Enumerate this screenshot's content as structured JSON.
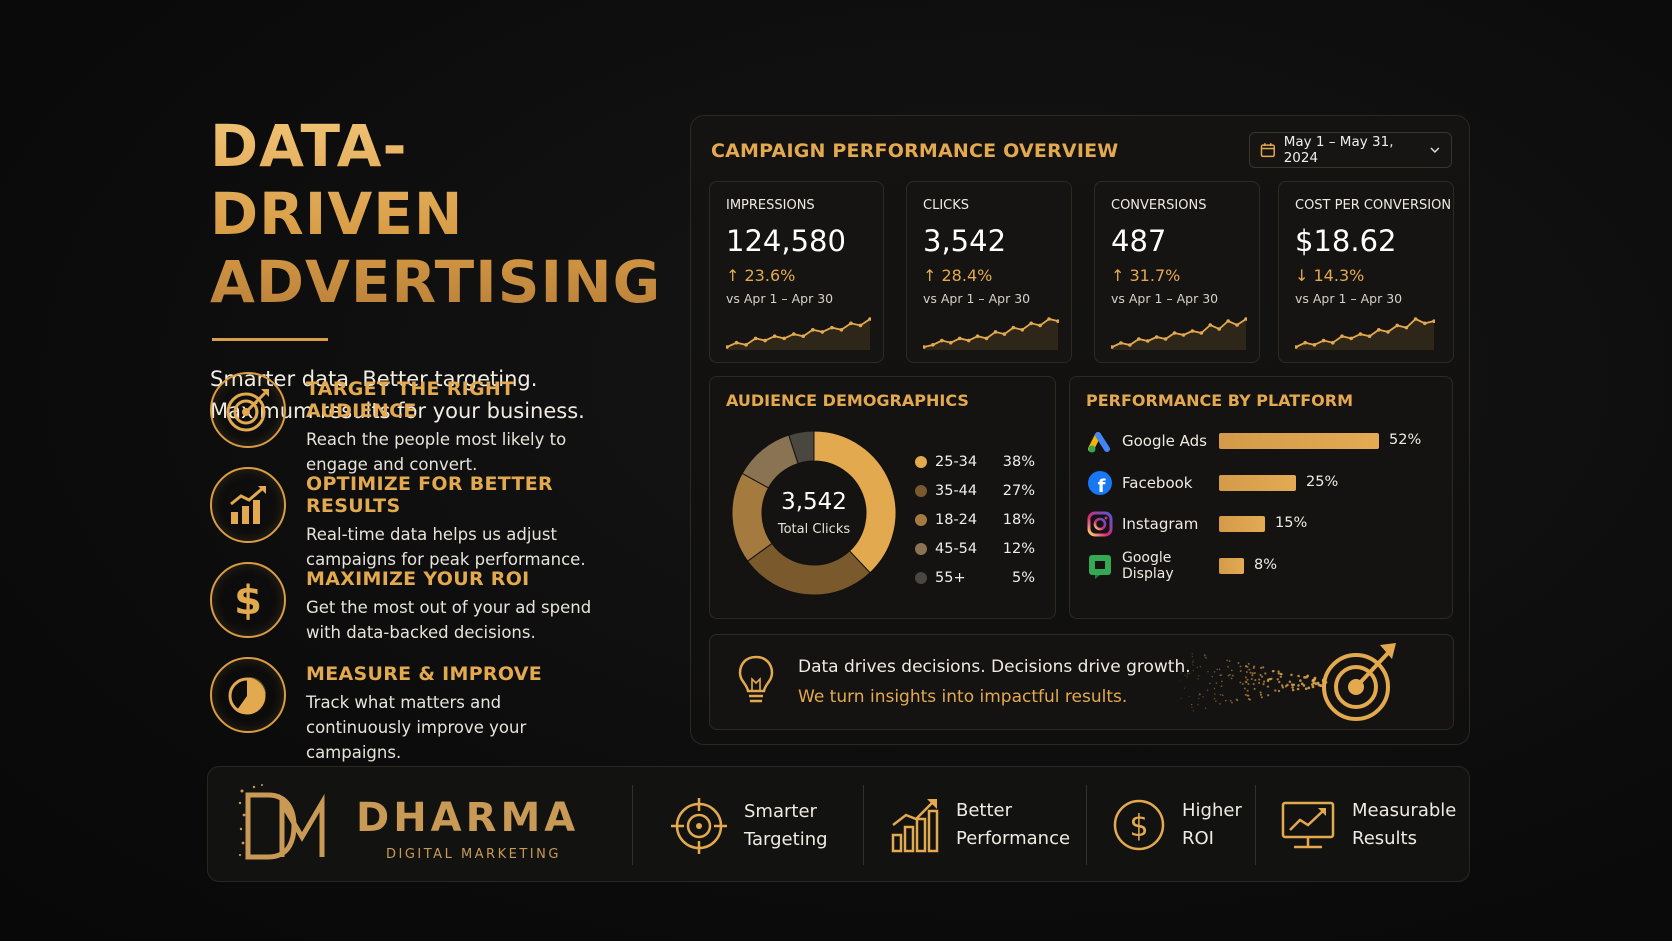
{
  "hero": {
    "title": "DATA-DRIVEN\nADVERTISING.",
    "subtitle": "Smarter data. Better targeting. Maximum results for your business."
  },
  "features": [
    {
      "icon": "target-arrow-icon",
      "title": "TARGET THE RIGHT AUDIENCE",
      "desc": "Reach the people most likely to engage and convert."
    },
    {
      "icon": "growth-chart-icon",
      "title": "OPTIMIZE FOR BETTER RESULTS",
      "desc": "Real-time data helps us adjust campaigns for peak performance."
    },
    {
      "icon": "dollar-icon",
      "title": "MAXIMIZE YOUR ROI",
      "desc": "Get the most out of your ad spend with data-backed decisions."
    },
    {
      "icon": "pie-chart-icon",
      "title": "MEASURE & IMPROVE",
      "desc": "Track what matters and continuously improve your campaigns."
    }
  ],
  "dashboard": {
    "title": "CAMPAIGN PERFORMANCE OVERVIEW",
    "date_range": "May 1 – May 31, 2024",
    "kpis": [
      {
        "label": "IMPRESSIONS",
        "value": "124,580",
        "delta": "↑ 23.6%",
        "compare": "vs Apr 1 – Apr 30"
      },
      {
        "label": "CLICKS",
        "value": "3,542",
        "delta": "↑ 28.4%",
        "compare": "vs Apr 1 – Apr 30"
      },
      {
        "label": "CONVERSIONS",
        "value": "487",
        "delta": "↑ 31.7%",
        "compare": "vs Apr 1 – Apr 30"
      },
      {
        "label": "COST PER CONVERSION",
        "value": "$18.62",
        "delta": "↓ 14.3%",
        "compare": "vs Apr 1 – Apr 30"
      }
    ],
    "demographics": {
      "title": "AUDIENCE DEMOGRAPHICS",
      "center_value": "3,542",
      "center_label": "Total Clicks"
    },
    "platforms": {
      "title": "PERFORMANCE BY PLATFORM"
    },
    "insight": {
      "line1": "Data drives decisions. Decisions drive growth.",
      "line2": "We turn insights into impactful results."
    }
  },
  "chart_data": [
    {
      "type": "pie",
      "categories": [
        "25-34",
        "35-44",
        "18-24",
        "45-54",
        "55+"
      ],
      "values": [
        38,
        27,
        18,
        12,
        5
      ],
      "labels": [
        "38%",
        "27%",
        "18%",
        "12%",
        "5%"
      ],
      "colors": [
        "#e3a94f",
        "#7a5a2c",
        "#a57a3e",
        "#8a7352",
        "#4a4640"
      ]
    },
    {
      "type": "bar",
      "categories": [
        "Google Ads",
        "Facebook",
        "Instagram",
        "Google Display"
      ],
      "values": [
        52,
        25,
        15,
        8
      ],
      "labels": [
        "52%",
        "25%",
        "15%",
        "8%"
      ],
      "xlim": [
        0,
        52
      ]
    },
    {
      "type": "line",
      "series": [
        {
          "values": [
            3,
            5,
            4,
            7,
            6,
            8,
            7,
            9,
            8,
            11,
            10,
            12,
            11,
            14,
            13,
            16
          ]
        },
        {
          "values": [
            3,
            4,
            6,
            5,
            7,
            6,
            8,
            7,
            10,
            9,
            12,
            11,
            14,
            13,
            16,
            15
          ]
        },
        {
          "values": [
            2,
            4,
            3,
            6,
            5,
            7,
            6,
            9,
            8,
            10,
            9,
            13,
            11,
            15,
            13,
            16
          ]
        },
        {
          "values": [
            3,
            5,
            4,
            6,
            5,
            8,
            7,
            9,
            8,
            11,
            10,
            13,
            12,
            16,
            14,
            15
          ]
        }
      ]
    }
  ],
  "footer": {
    "brand": "DHARMA",
    "brand_sub": "DIGITAL MARKETING",
    "items": [
      {
        "icon": "crosshair-icon",
        "label": "Smarter\nTargeting"
      },
      {
        "icon": "bar-growth-icon",
        "label": "Better\nPerformance"
      },
      {
        "icon": "dollar-circle-icon",
        "label": "Higher\nROI"
      },
      {
        "icon": "monitor-trend-icon",
        "label": "Measurable\nResults"
      }
    ]
  }
}
